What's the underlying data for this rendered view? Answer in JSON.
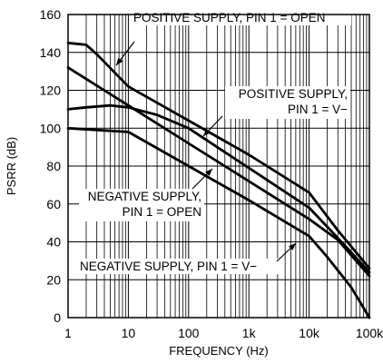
{
  "chart_data": {
    "type": "line",
    "xscale": "log",
    "xlim": [
      1,
      100000
    ],
    "ylim": [
      0,
      160
    ],
    "xlabel": "FREQUENCY (Hz)",
    "ylabel": "PSRR (dB)",
    "grid": true,
    "x_ticks": [
      {
        "value": 1,
        "label": "1"
      },
      {
        "value": 10,
        "label": "10"
      },
      {
        "value": 100,
        "label": "100"
      },
      {
        "value": 1000,
        "label": "1k"
      },
      {
        "value": 10000,
        "label": "10k"
      },
      {
        "value": 100000,
        "label": "100k"
      }
    ],
    "y_ticks": [
      {
        "value": 0,
        "label": "0"
      },
      {
        "value": 20,
        "label": "20"
      },
      {
        "value": 40,
        "label": "40"
      },
      {
        "value": 60,
        "label": "60"
      },
      {
        "value": 80,
        "label": "80"
      },
      {
        "value": 100,
        "label": "100"
      },
      {
        "value": 120,
        "label": "120"
      },
      {
        "value": 140,
        "label": "140"
      },
      {
        "value": 160,
        "label": "160"
      }
    ],
    "series": [
      {
        "name": "POSITIVE SUPPLY, PIN 1 = OPEN",
        "points": [
          [
            1,
            145
          ],
          [
            2,
            144
          ],
          [
            3,
            139
          ],
          [
            10,
            122
          ],
          [
            100,
            104
          ],
          [
            1000,
            86
          ],
          [
            10000,
            66
          ],
          [
            30000,
            46
          ],
          [
            100000,
            26
          ]
        ]
      },
      {
        "name": "POSITIVE SUPPLY, PIN 1 = V−",
        "points": [
          [
            1,
            110
          ],
          [
            2,
            111
          ],
          [
            5,
            112
          ],
          [
            10,
            111
          ],
          [
            30,
            107
          ],
          [
            100,
            100
          ],
          [
            1000,
            79
          ],
          [
            10000,
            58
          ],
          [
            30000,
            42
          ],
          [
            100000,
            24
          ]
        ]
      },
      {
        "name": "NEGATIVE SUPPLY, PIN 1 = OPEN",
        "points": [
          [
            1,
            132
          ],
          [
            10,
            112
          ],
          [
            100,
            92
          ],
          [
            1000,
            72
          ],
          [
            10000,
            52
          ],
          [
            30000,
            41
          ],
          [
            100000,
            22
          ]
        ]
      },
      {
        "name": "NEGATIVE SUPPLY, PIN 1 = V−",
        "points": [
          [
            1,
            100
          ],
          [
            10,
            98
          ],
          [
            100,
            80
          ],
          [
            1000,
            62
          ],
          [
            10000,
            43
          ],
          [
            20000,
            32
          ],
          [
            50000,
            16
          ],
          [
            100000,
            0
          ]
        ]
      }
    ],
    "annotations": [
      {
        "id": "pos-open",
        "lines": [
          "POSITIVE SUPPLY, PIN 1 = OPEN"
        ]
      },
      {
        "id": "pos-vminus",
        "lines": [
          "POSITIVE SUPPLY,",
          "PIN 1 = V−"
        ]
      },
      {
        "id": "neg-open",
        "lines": [
          "NEGATIVE SUPPLY,",
          "PIN 1 = OPEN"
        ]
      },
      {
        "id": "neg-vminus",
        "lines": [
          "NEGATIVE SUPPLY, PIN 1 = V−"
        ]
      }
    ]
  }
}
